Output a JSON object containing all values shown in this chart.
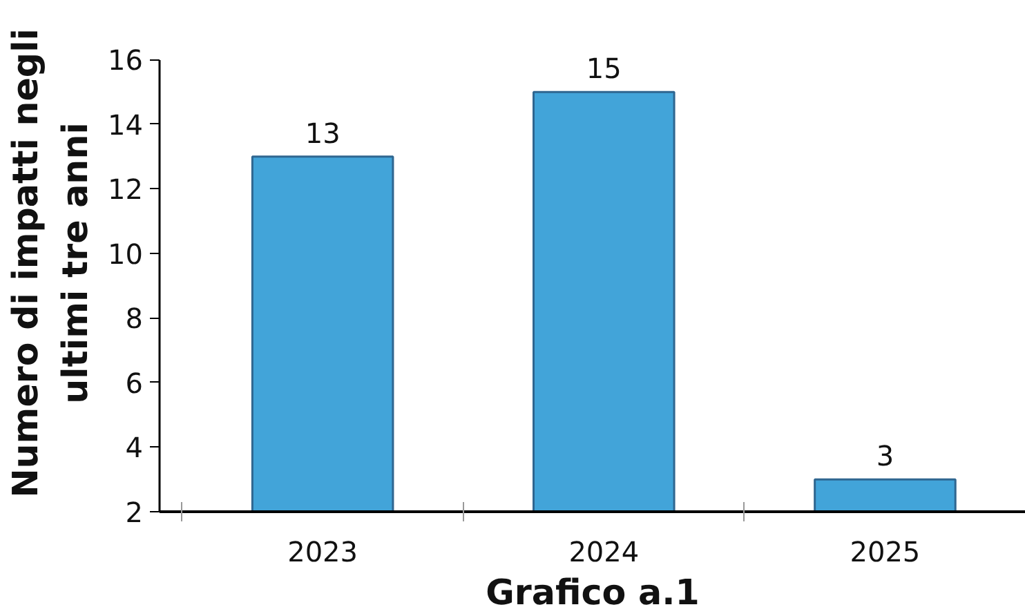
{
  "chart_data": {
    "type": "bar",
    "xlabel": "Grafico a.1",
    "ylabel": "Numero di impatti negli\nultimi tre anni",
    "categories": [
      "2023",
      "2024",
      "2025"
    ],
    "values": [
      13,
      15,
      3
    ],
    "color": "#42a4d9",
    "ylim": [
      2,
      16
    ],
    "yticks": [
      2,
      4,
      6,
      8,
      10,
      12,
      14,
      16
    ],
    "data_labels": true,
    "grid": false
  }
}
